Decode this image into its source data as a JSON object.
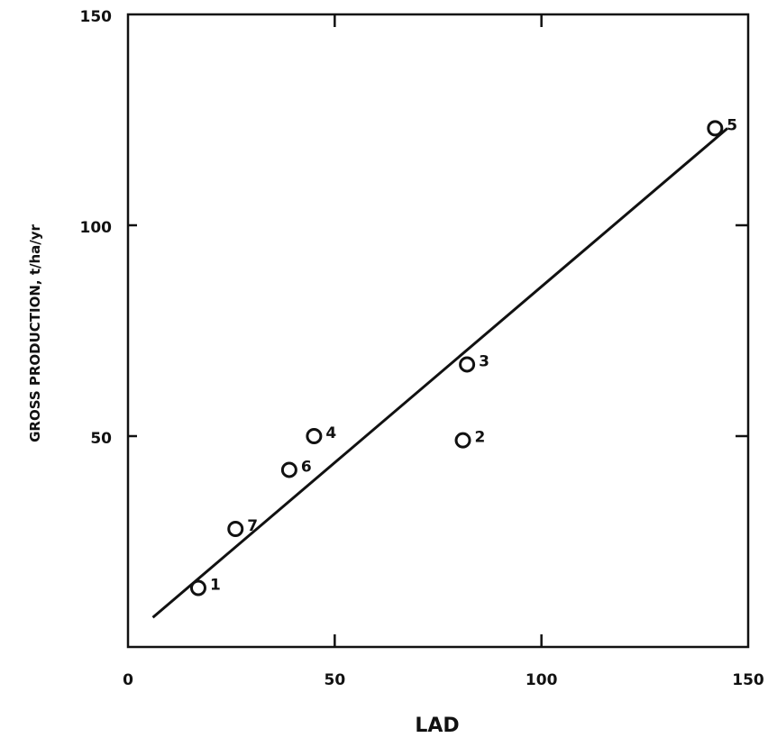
{
  "chart_data": {
    "type": "scatter",
    "title": "",
    "xlabel": "LAD",
    "ylabel": "GROSS PRODUCTION, t/ha/yr",
    "xlim": [
      0,
      150
    ],
    "ylim": [
      0,
      150
    ],
    "x_ticks": [
      0,
      50,
      100,
      150
    ],
    "y_ticks": [
      50,
      100,
      150
    ],
    "x_tick_labels": [
      "0",
      "50",
      "100",
      "150"
    ],
    "y_tick_labels": [
      "50",
      "100",
      "150"
    ],
    "grid": false,
    "points": [
      {
        "label": "1",
        "x": 17,
        "y": 14
      },
      {
        "label": "2",
        "x": 81,
        "y": 49
      },
      {
        "label": "3",
        "x": 82,
        "y": 67
      },
      {
        "label": "4",
        "x": 45,
        "y": 50
      },
      {
        "label": "5",
        "x": 142,
        "y": 123
      },
      {
        "label": "6",
        "x": 39,
        "y": 42
      },
      {
        "label": "7",
        "x": 26,
        "y": 28
      }
    ],
    "fit_line": {
      "x": [
        6,
        145
      ],
      "y": [
        7,
        123
      ]
    }
  }
}
